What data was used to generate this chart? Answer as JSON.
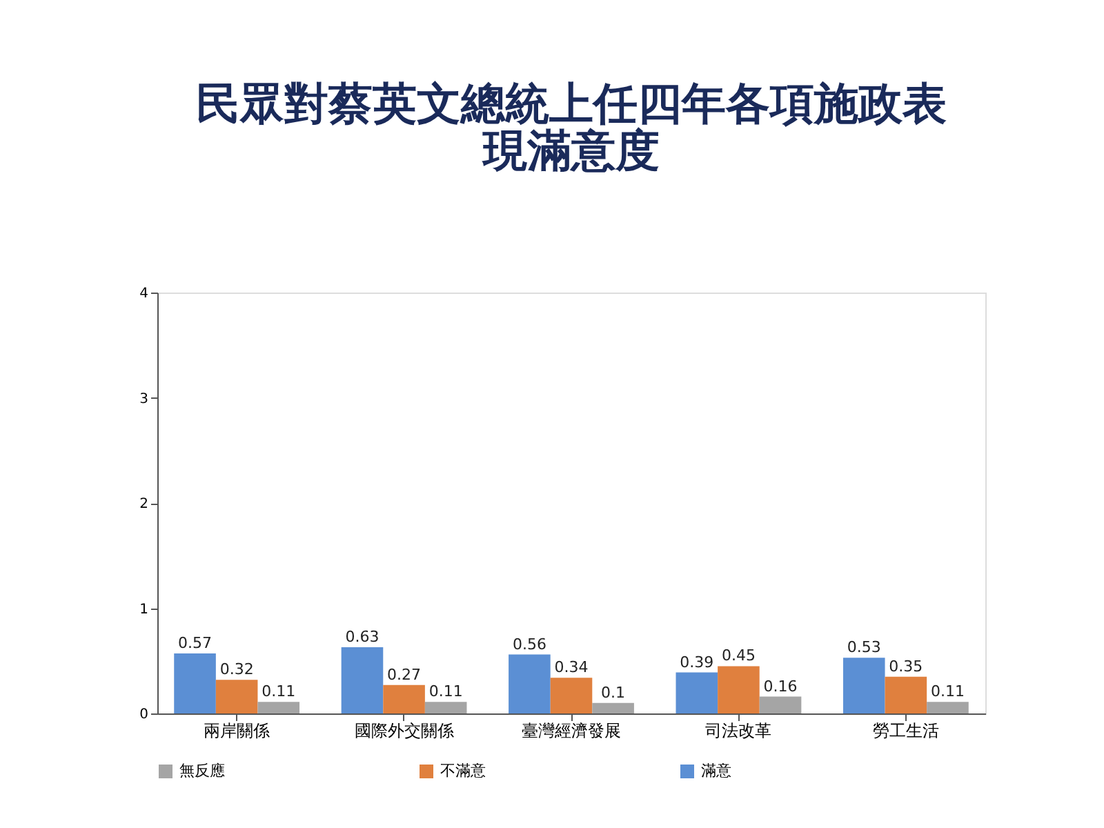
{
  "chart_data": {
    "type": "bar",
    "title": "民眾對蔡英文總統上任四年各項施政表現滿意度",
    "categories": [
      "兩岸關係",
      "國際外交關係",
      "臺灣經濟發展",
      "司法改革",
      "勞工生活"
    ],
    "series": [
      {
        "name": "滿意",
        "color": "#5b8fd4",
        "values": [
          0.57,
          0.63,
          0.56,
          0.39,
          0.53
        ]
      },
      {
        "name": "不滿意",
        "color": "#e0803e",
        "values": [
          0.32,
          0.27,
          0.34,
          0.45,
          0.35
        ]
      },
      {
        "name": "無反應",
        "color": "#a5a5a5",
        "values": [
          0.11,
          0.11,
          0.1,
          0.16,
          0.11
        ]
      }
    ],
    "ylim": [
      0,
      4
    ],
    "yticks": [
      0,
      1,
      2,
      3,
      4
    ],
    "grid": false,
    "legend": "bottom",
    "data_labels": true
  }
}
